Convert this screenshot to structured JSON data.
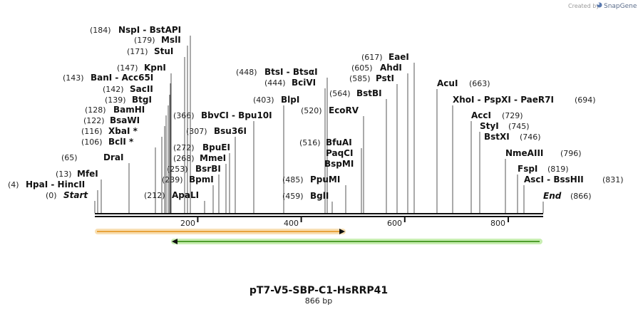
{
  "brand": {
    "prefix": "Created by",
    "name": "SnapGene"
  },
  "title": "pT7-V5-SBP-C1-HsRRP41",
  "length_label": "866 bp",
  "sequence_length": 866,
  "ruler_ticks": [
    "200",
    "400",
    "600",
    "800"
  ],
  "sites": [
    {
      "pos": "(184)",
      "name": "NspI  -  BstAPI"
    },
    {
      "pos": "(179)",
      "name": "MslI"
    },
    {
      "pos": "(171)",
      "name": "StuI"
    },
    {
      "pos": "(147)",
      "name": "KpnI"
    },
    {
      "pos": "(143)",
      "name": "BanI  -  Acc65I"
    },
    {
      "pos": "(142)",
      "name": "SacII"
    },
    {
      "pos": "(139)",
      "name": "BtgI"
    },
    {
      "pos": "(128)",
      "name": "BamHI"
    },
    {
      "pos": "(122)",
      "name": "BsaWI"
    },
    {
      "pos": "(116)",
      "name": "XbaI *"
    },
    {
      "pos": "(106)",
      "name": "BclI *"
    },
    {
      "pos": "(65)",
      "name": "DraI"
    },
    {
      "pos": "(13)",
      "name": "MfeI"
    },
    {
      "pos": "(4)",
      "name": "HpaI  -  HincII"
    },
    {
      "pos": "(0)",
      "name": "Start"
    },
    {
      "pos": "(366)",
      "name": "BbvCI  -  Bpu10I"
    },
    {
      "pos": "(307)",
      "name": "Bsu36I"
    },
    {
      "pos": "(272)",
      "name": "BpuEI"
    },
    {
      "pos": "(268)",
      "name": "MmeI"
    },
    {
      "pos": "(253)",
      "name": "BsrBI"
    },
    {
      "pos": "(239)",
      "name": "BpmI"
    },
    {
      "pos": "(212)",
      "name": "ApaLI"
    },
    {
      "pos": "(448)",
      "name": "BtsI  -  BtsαI"
    },
    {
      "pos": "(444)",
      "name": "BciVI"
    },
    {
      "pos": "(403)",
      "name": "BlpI"
    },
    {
      "pos": "(520)",
      "name": "EcoRV"
    },
    {
      "pos": "(516)",
      "name": "BfuAI"
    },
    {
      "pos": "",
      "name": "PaqCI"
    },
    {
      "pos": "",
      "name": "BspMI"
    },
    {
      "pos": "(485)",
      "name": "PpuMI"
    },
    {
      "pos": "(459)",
      "name": "BglI"
    },
    {
      "pos": "(617)",
      "name": "EaeI"
    },
    {
      "pos": "(605)",
      "name": "AhdI"
    },
    {
      "pos": "(585)",
      "name": "PstI"
    },
    {
      "pos": "(564)",
      "name": "BstBI"
    },
    {
      "pos": "(663)",
      "name": "AcuI"
    },
    {
      "pos": "(694)",
      "name": "XhoI  -  PspXI  -  PaeR7I"
    },
    {
      "pos": "(729)",
      "name": "AccI"
    },
    {
      "pos": "(745)",
      "name": "StyI"
    },
    {
      "pos": "(746)",
      "name": "BstXI"
    },
    {
      "pos": "(796)",
      "name": "NmeAIII"
    },
    {
      "pos": "(819)",
      "name": "FspI"
    },
    {
      "pos": "(831)",
      "name": "AscI  -  BssHII"
    },
    {
      "pos": "(866)",
      "name": "End"
    }
  ],
  "features": [
    {
      "name": "orange-feature",
      "start": 0,
      "end": 482,
      "direction": "forward",
      "color": "#e8a33b",
      "halo": "#f8dfb3"
    },
    {
      "name": "green-feature",
      "start": 150,
      "end": 860,
      "direction": "reverse",
      "color": "#4f9e2d",
      "halo": "#c8eeb2"
    }
  ]
}
